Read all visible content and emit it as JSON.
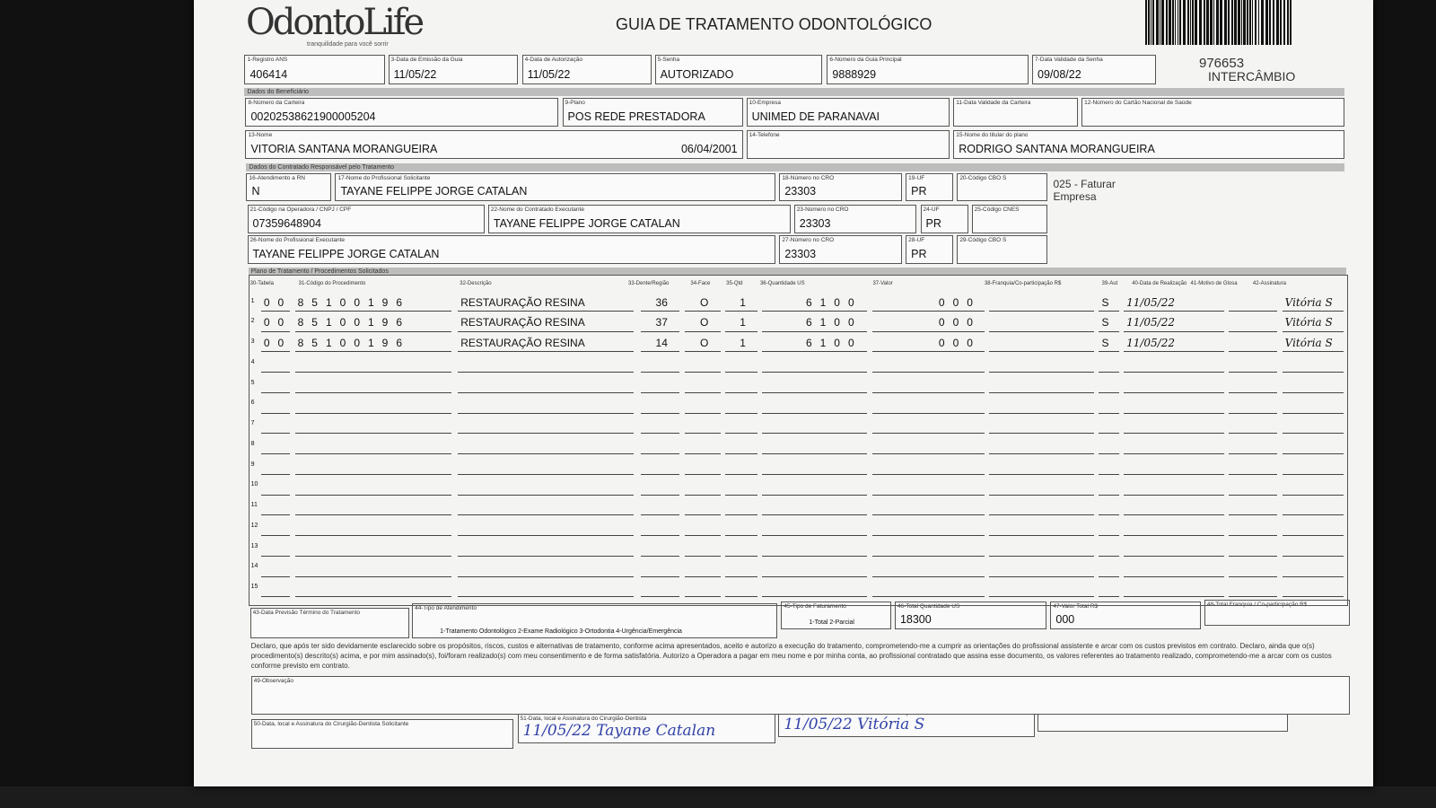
{
  "header": {
    "logo": "OdontoLife",
    "tagline": "tranquilidade para você sorrir",
    "title": "GUIA DE TRATAMENTO ODONTOLÓGICO",
    "guide_number": "976653",
    "guide_type": "INTERCÂMBIO"
  },
  "sections": [
    "Dados do Beneficiário",
    "Dados do Contratado Responsável pelo Tratamento",
    "Plano de Tratamento / Procedimentos Solicitados"
  ],
  "fields": [
    {
      "label": "1-Registro ANS",
      "value": "406414"
    },
    {
      "label": "3-Data de Emissão da Guia",
      "value": "11/05/22"
    },
    {
      "label": "4-Data de Autorização",
      "value": "11/05/22"
    },
    {
      "label": "5-Senha",
      "value": "AUTORIZADO"
    },
    {
      "label": "6-Número da Guia Principal",
      "value": "9888929"
    },
    {
      "label": "7-Data Validade da Senha",
      "value": "09/08/22"
    },
    {
      "label": "8-Número da Carteira",
      "value": "00202538621900005204"
    },
    {
      "label": "9-Plano",
      "value": "POS REDE PRESTADORA"
    },
    {
      "label": "10-Empresa",
      "value": "UNIMED DE PARANAVAI"
    },
    {
      "label": "11-Data Validade da Carteira"
    },
    {
      "label": "12-Número do Cartão Nacional de Saúde"
    },
    {
      "label": "13-Nome",
      "value": "VITORIA SANTANA MORANGUEIRA",
      "extra": "06/04/2001"
    },
    {
      "label": "14-Telefone"
    },
    {
      "label": "15-Nome do titular do plano",
      "value": "RODRIGO SANTANA MORANGUEIRA"
    },
    {
      "label": "16-Atendimento a RN",
      "value": "N"
    },
    {
      "label": "17-Nome do Profissional Solicitante",
      "value": "TAYANE FELIPPE JORGE CATALAN"
    },
    {
      "label": "18-Número no CRO",
      "value": "23303"
    },
    {
      "label": "19-UF",
      "value": "PR"
    },
    {
      "label": "20-Código CBO S"
    },
    {
      "label": "21-Código na Operadora / CNPJ / CPF",
      "value": "07359648904"
    },
    {
      "label": "22-Nome do Contratado Executante",
      "value": "TAYANE FELIPPE JORGE CATALAN"
    },
    {
      "label": "23-Número no CRO",
      "value": "23303"
    },
    {
      "label": "24-UF",
      "value": "PR"
    },
    {
      "label": "25-Código CNES"
    },
    {
      "label": "26-Nome do Profissional Executante",
      "value": "TAYANE FELIPPE JORGE CATALAN"
    },
    {
      "label": "27-Número no CRO",
      "value": "23303"
    },
    {
      "label": "28-UF",
      "value": "PR"
    },
    {
      "label": "29-Código CBO S"
    },
    {
      "label": "43-Data Previsão Término do Tratamento"
    },
    {
      "label": "44-Tipo de Atendimento",
      "value": "1-Tratamento Odontológico  2-Exame Radiológico  3-Ortodontia  4-Urgência/Emergência"
    },
    {
      "label": "45-Tipo de Faturamento",
      "value": "1-Total  2-Parcial"
    },
    {
      "label": "46-Total Quantidade US",
      "value": "18300"
    },
    {
      "label": "47-Valor Total R$",
      "value": "000"
    },
    {
      "label": "48-Total Franquia / Co-participação R$"
    },
    {
      "label": "50-Data, local e Assinatura do Cirurgião-Dentista Solicitante"
    },
    {
      "label": "51-Data, local e Assinatura do Cirurgião-Dentista",
      "value": "11/05/22 Tayane Catalan"
    },
    {
      "label": "52-Data, local e Assinatura do Beneficiário / Responsável",
      "value": "11/05/22 Vitória S"
    },
    {
      "label": "53-Data, local e Carimbo da Empresa"
    }
  ],
  "note": "025 - Faturar Empresa",
  "procedures": {
    "columns": [
      "30-Tabela",
      "31-Código do Procedimento",
      "32-Descrição",
      "33-Dente/Região",
      "34-Face",
      "35-Qtd",
      "36-Quantidade US",
      "37-Valor",
      "38-Franquia/Co-participação R$",
      "39-Aut",
      "40-Data de Realização",
      "41-Motivo de Glosa",
      "42-Assinatura"
    ],
    "rows": [
      {
        "n": "1",
        "tabela": "00",
        "codigo": "85100196",
        "descricao": "RESTAURAÇÃO RESINA",
        "dente": "36",
        "face": "O",
        "qtd": "1",
        "qtd_us": "6100",
        "franquia": "000",
        "aut": "S",
        "data": "11/05/22",
        "assinatura": "Vitória S"
      },
      {
        "n": "2",
        "tabela": "00",
        "codigo": "85100196",
        "descricao": "RESTAURAÇÃO RESINA",
        "dente": "37",
        "face": "O",
        "qtd": "1",
        "qtd_us": "6100",
        "franquia": "000",
        "aut": "S",
        "data": "11/05/22",
        "assinatura": "Vitória S"
      },
      {
        "n": "3",
        "tabela": "00",
        "codigo": "85100196",
        "descricao": "RESTAURAÇÃO RESINA",
        "dente": "14",
        "face": "O",
        "qtd": "1",
        "qtd_us": "6100",
        "franquia": "000",
        "aut": "S",
        "data": "11/05/22",
        "assinatura": "Vitória S"
      },
      {
        "n": "4"
      },
      {
        "n": "5"
      },
      {
        "n": "6"
      },
      {
        "n": "7"
      },
      {
        "n": "8"
      },
      {
        "n": "9"
      },
      {
        "n": "10"
      },
      {
        "n": "11"
      },
      {
        "n": "12"
      },
      {
        "n": "13"
      },
      {
        "n": "14"
      },
      {
        "n": "15"
      }
    ]
  },
  "declaration": "Declaro, que após ter sido devidamente esclarecido sobre os propósitos, riscos, custos e alternativas de tratamento, conforme acima apresentados, aceito e autorizo a execução do tratamento, comprometendo-me a cumprir as orientações do profissional assistente e arcar com os custos previstos em contrato. Declaro, ainda que o(s) procedimento(s) descrito(s) acima, e por mim assinado(s), foi/foram realizado(s) com meu consentimento e de forma satisfatória. Autorizo a Operadora a pagar em meu nome e por minha conta, ao profissional contratado que assina esse documento, os valores referentes ao tratamento realizado, comprometendo-me a arcar com os custos conforme previsto em contrato.",
  "observation_label": "49-Observação"
}
